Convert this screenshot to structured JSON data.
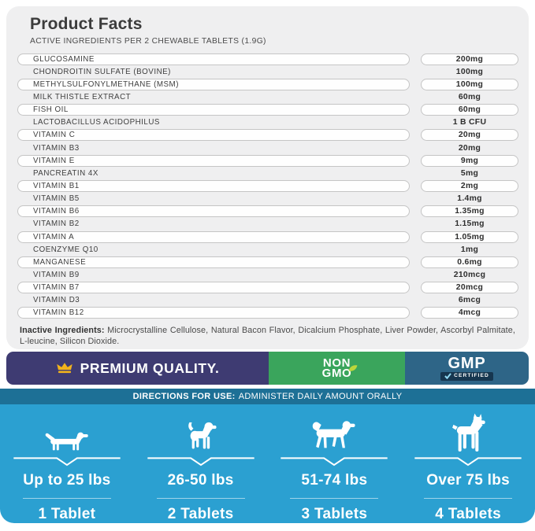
{
  "header": {
    "title": "Product Facts",
    "subtitle": "ACTIVE INGREDIENTS PER 2 CHEWABLE TABLETS (1.9G)"
  },
  "ingredients": [
    {
      "name": "GLUCOSAMINE",
      "amount": "200mg"
    },
    {
      "name": "CHONDROITIN SULFATE (BOVINE)",
      "amount": "100mg"
    },
    {
      "name": "METHYLSULFONYLMETHANE (MSM)",
      "amount": "100mg"
    },
    {
      "name": "MILK THISTLE EXTRACT",
      "amount": "60mg"
    },
    {
      "name": "FISH OIL",
      "amount": "60mg"
    },
    {
      "name": "LACTOBACILLUS ACIDOPHILUS",
      "amount": "1 B CFU"
    },
    {
      "name": "VITAMIN C",
      "amount": "20mg"
    },
    {
      "name": "VITAMIN B3",
      "amount": "20mg"
    },
    {
      "name": "VITAMIN E",
      "amount": "9mg"
    },
    {
      "name": "PANCREATIN 4X",
      "amount": "5mg"
    },
    {
      "name": "VITAMIN B1",
      "amount": "2mg"
    },
    {
      "name": "VITAMIN B5",
      "amount": "1.4mg"
    },
    {
      "name": "VITAMIN B6",
      "amount": "1.35mg"
    },
    {
      "name": "VITAMIN B2",
      "amount": "1.15mg"
    },
    {
      "name": "VITAMIN A",
      "amount": "1.05mg"
    },
    {
      "name": "COENZYME Q10",
      "amount": "1mg"
    },
    {
      "name": "MANGANESE",
      "amount": "0.6mg"
    },
    {
      "name": "VITAMIN B9",
      "amount": "210mcg"
    },
    {
      "name": "VITAMIN B7",
      "amount": "20mcg"
    },
    {
      "name": "VITAMIN D3",
      "amount": "6mcg"
    },
    {
      "name": "VITAMIN B12",
      "amount": "4mcg"
    }
  ],
  "inactive": {
    "label": "Inactive Ingredients:",
    "text": "Microcrystalline Cellulose, Natural Bacon Flavor, Dicalcium Phosphate, Liver Powder, Ascorbyl Palmitate, L-leucine, Silicon Dioxide."
  },
  "badges": {
    "premium": {
      "label": "PREMIUM QUALITY.",
      "icon": "crown-icon",
      "bg": "#3e3b72",
      "crown_color": "#f2b31c"
    },
    "non_gmo": {
      "line1": "NON",
      "line2": "GMO",
      "bg": "#3aa55c",
      "leaf_color": "#bcd63b"
    },
    "gmp": {
      "label": "GMP",
      "sub": "CERTIFIED",
      "bg": "#2e6587",
      "check_color": "#8fd8f2"
    }
  },
  "directions": {
    "label": "DIRECTIONS FOR USE:",
    "text": "ADMINISTER DAILY AMOUNT ORALLY",
    "bg": "#1d7096"
  },
  "dosage": {
    "bg": "#2ba0d1",
    "groups": [
      {
        "icon": "dachshund-icon",
        "weight": "Up to 25 lbs",
        "tablets": "1 Tablet"
      },
      {
        "icon": "puppy-icon",
        "weight": "26-50 lbs",
        "tablets": "2 Tablets"
      },
      {
        "icon": "retriever-icon",
        "weight": "51-74 lbs",
        "tablets": "3 Tablets"
      },
      {
        "icon": "boxer-icon",
        "weight": "Over 75 lbs",
        "tablets": "4 Tablets"
      }
    ]
  },
  "colors": {
    "card_bg": "#efeff0",
    "pill_border": "#c5c5c5",
    "text_dark": "#3c3c3c"
  }
}
